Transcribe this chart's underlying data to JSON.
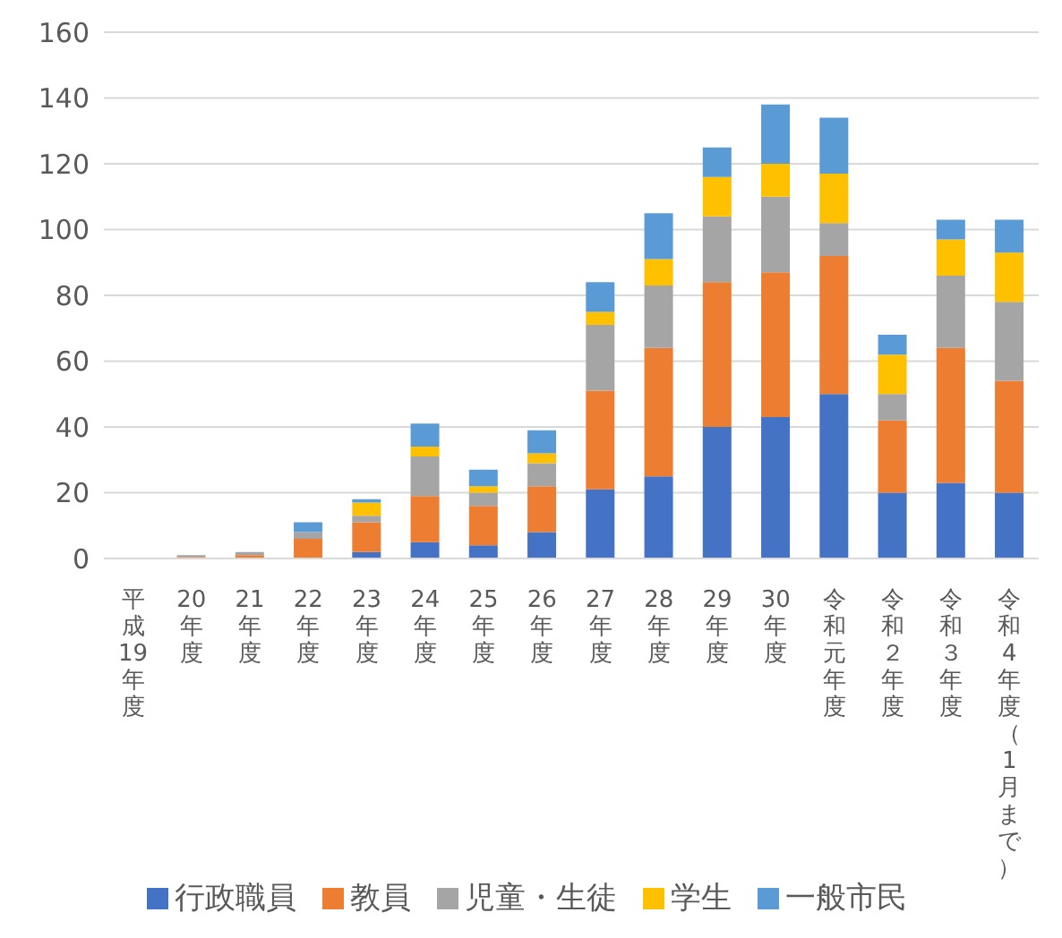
{
  "chart_data": {
    "type": "bar",
    "stacked": true,
    "categories": [
      "平成19年度",
      "20年度",
      "21年度",
      "22年度",
      "23年度",
      "24年度",
      "25年度",
      "26年度",
      "27年度",
      "28年度",
      "29年度",
      "30年度",
      "令和元年度",
      "令和２年度",
      "令和３年度",
      "令和4年度（1月まで）"
    ],
    "series": [
      {
        "name": "行政職員",
        "color": "#4472c4",
        "values": [
          0,
          0,
          0,
          0,
          2,
          5,
          4,
          8,
          21,
          25,
          40,
          43,
          50,
          20,
          23,
          20
        ]
      },
      {
        "name": "教員",
        "color": "#ed7d31",
        "values": [
          0,
          0.5,
          1,
          6,
          9,
          14,
          12,
          14,
          30,
          39,
          44,
          44,
          42,
          22,
          41,
          34
        ]
      },
      {
        "name": "児童・生徒",
        "color": "#a5a5a5",
        "values": [
          0,
          0.5,
          1,
          2,
          2,
          12,
          4,
          7,
          20,
          19,
          20,
          23,
          10,
          8,
          22,
          24
        ]
      },
      {
        "name": "学生",
        "color": "#ffc000",
        "values": [
          0,
          0,
          0,
          0,
          4,
          3,
          2,
          3,
          4,
          8,
          12,
          10,
          15,
          12,
          11,
          15
        ]
      },
      {
        "name": "一般市民",
        "color": "#5b9bd5",
        "values": [
          0,
          0,
          0,
          3,
          1,
          7,
          5,
          7,
          9,
          14,
          9,
          18,
          17,
          6,
          6,
          10
        ]
      }
    ],
    "ylim": [
      0,
      160
    ],
    "yticks": [
      0,
      20,
      40,
      60,
      80,
      100,
      120,
      140,
      160
    ],
    "grid": "y",
    "legend": "bottom"
  }
}
